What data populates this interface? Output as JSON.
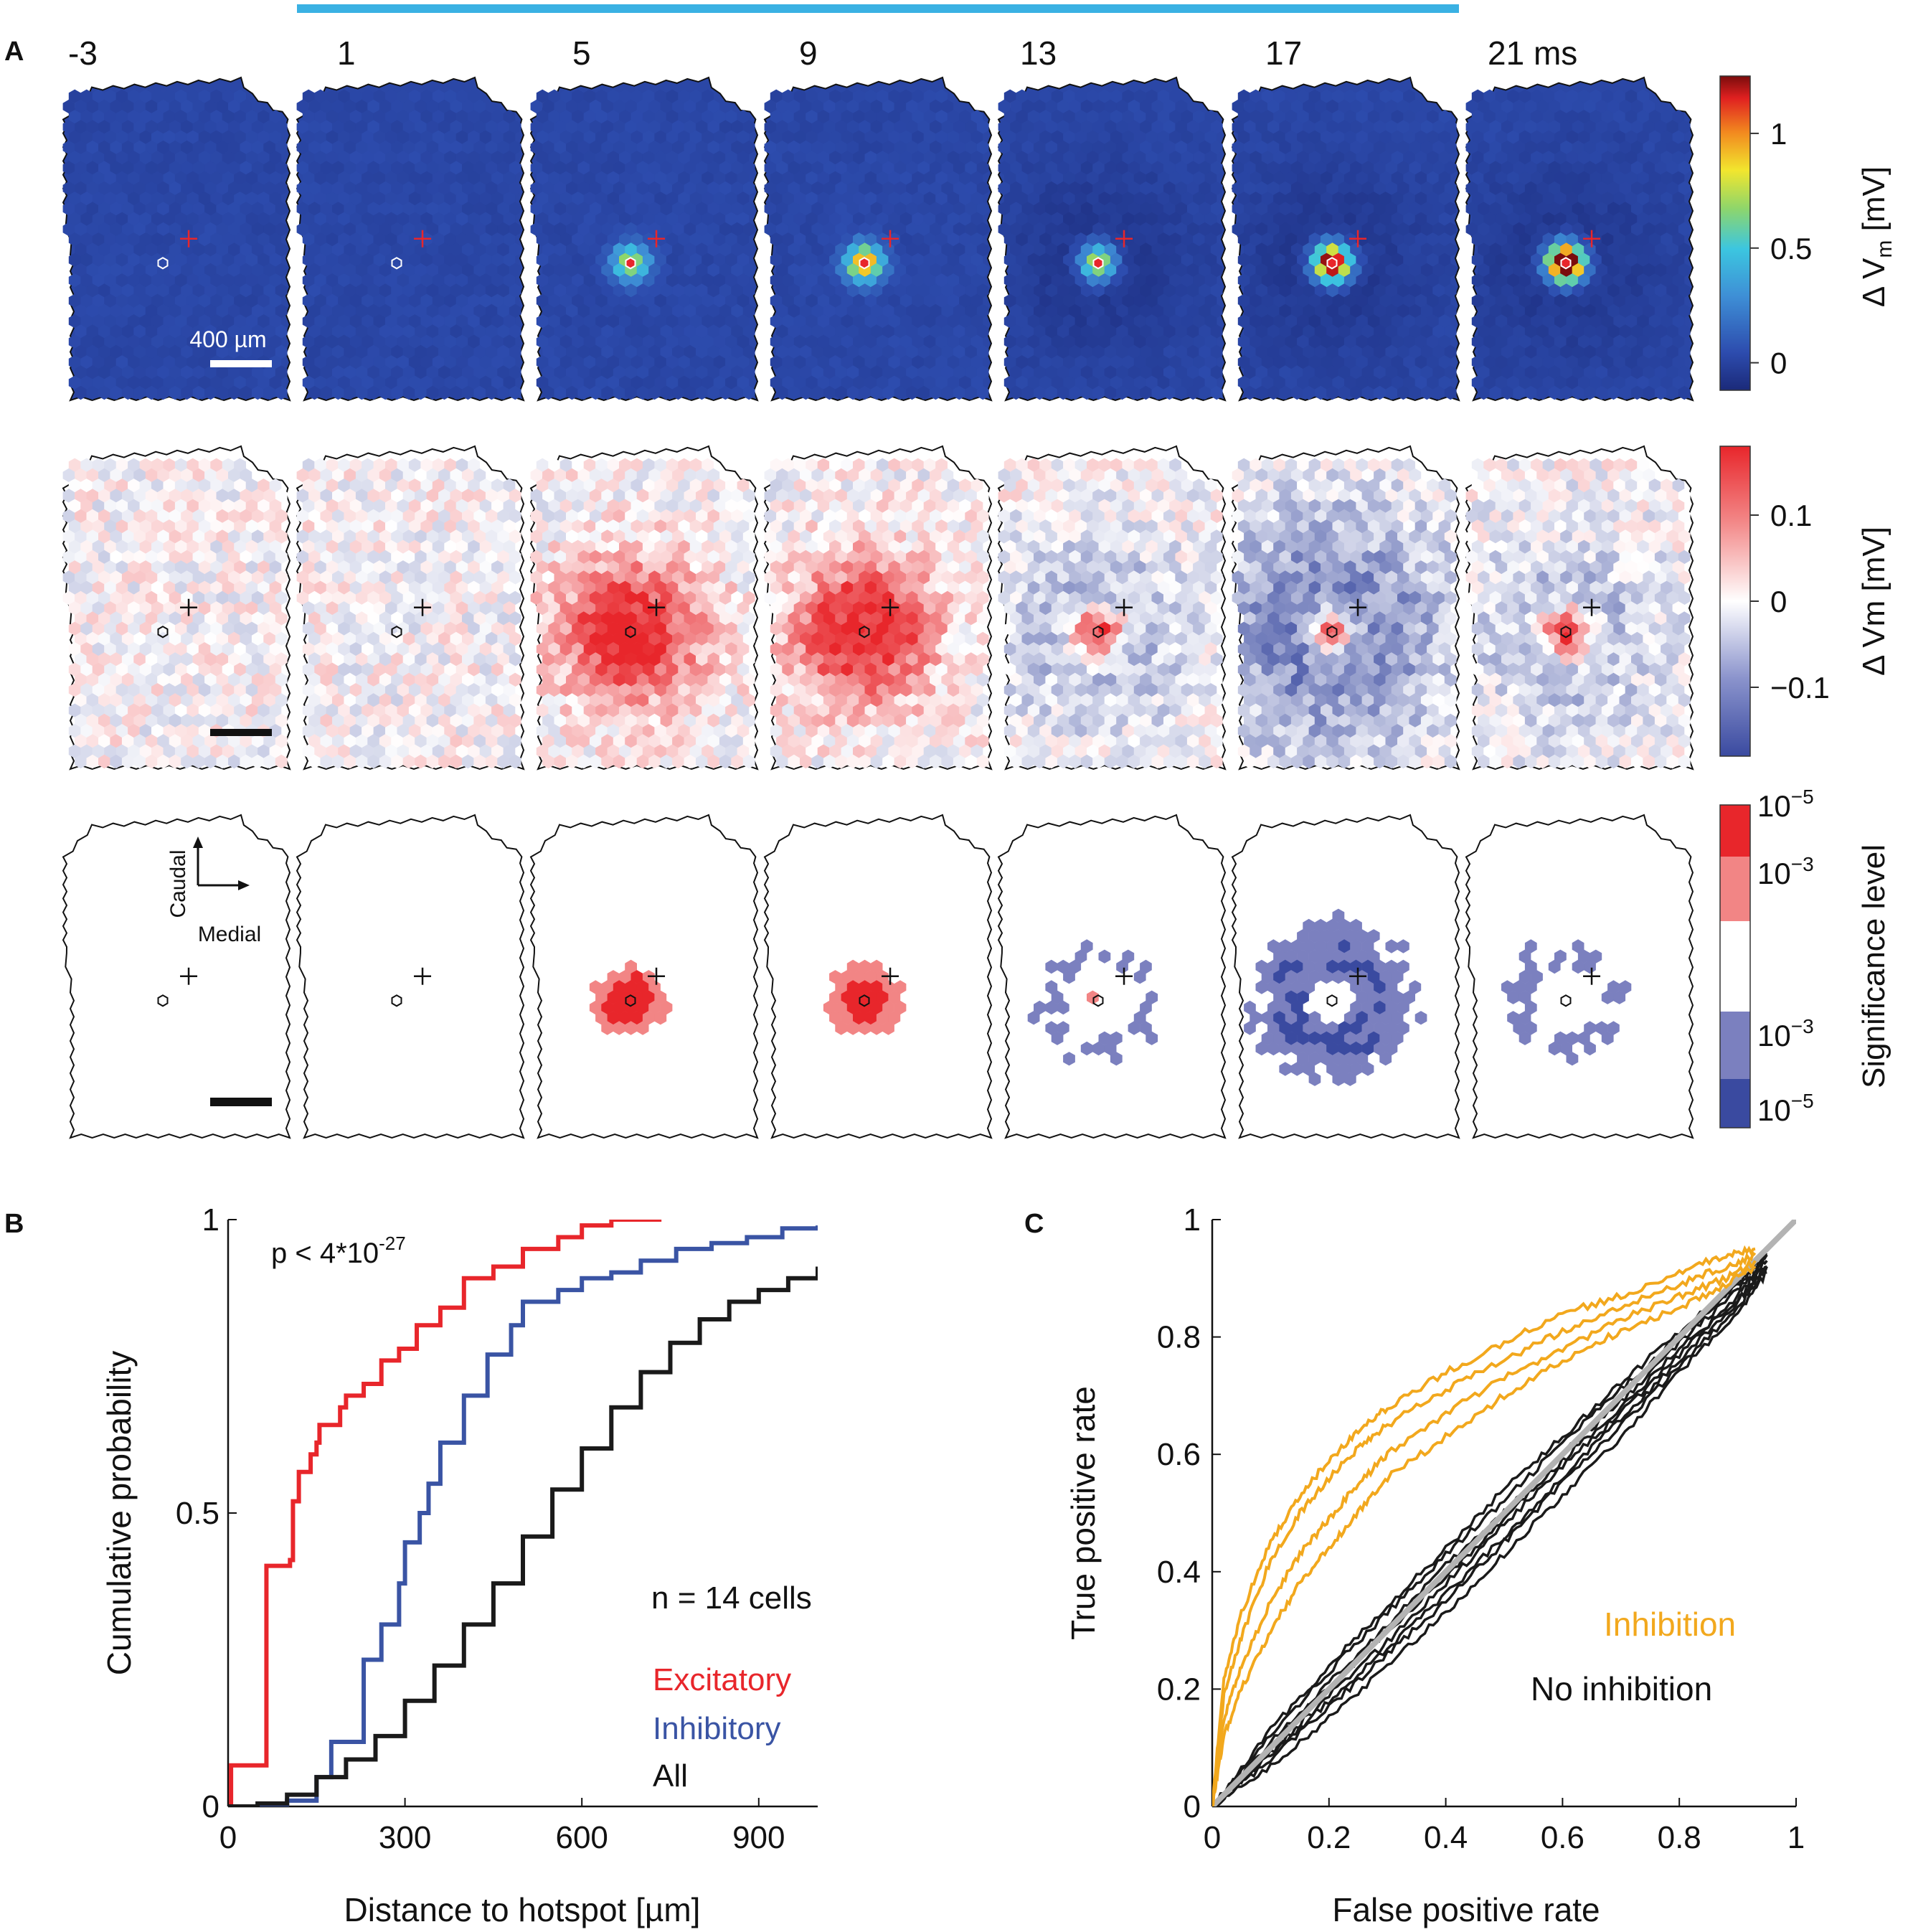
{
  "figure": {
    "panel_labels": {
      "a": "A",
      "b": "B",
      "c": "C"
    },
    "stim_bar_color": "#3ab1e3"
  },
  "panel_a": {
    "time_labels": [
      "-3",
      "1",
      "5",
      "9",
      "13",
      "17",
      "21 ms"
    ],
    "scale_bar_label": "400 µm",
    "orientation": {
      "caudal": "Caudal",
      "medial": "Medial"
    },
    "colorbar_top": {
      "label_main": "Δ V",
      "label_sub": "m",
      "label_unit": " [mV]",
      "ticks": [
        "1",
        "0.5",
        "0"
      ],
      "tick_values": [
        1,
        0.5,
        0
      ],
      "range": [
        -0.12,
        1.25
      ]
    },
    "colorbar_mid": {
      "label": "Δ Vm [mV]",
      "ticks": [
        "0.1",
        "0",
        "−0.1"
      ],
      "tick_values": [
        0.1,
        0,
        -0.1
      ],
      "range": [
        -0.18,
        0.18
      ]
    },
    "colorbar_sig": {
      "label": "Significance level",
      "ticks": [
        {
          "base": "10",
          "exp": "−5"
        },
        {
          "base": "10",
          "exp": "−3"
        },
        {
          "base": "10",
          "exp": "−3"
        },
        {
          "base": "10",
          "exp": "−5"
        }
      ],
      "colors": [
        "#e8262b",
        "#f28585",
        "#ffffff",
        "#7b80bf",
        "#3a4aa0"
      ]
    },
    "top_row_peaks": [
      0.0,
      0.0,
      0.55,
      0.75,
      0.6,
      1.05,
      1.25
    ],
    "mid_row_regime": [
      "noise",
      "noise",
      "excitation",
      "excitation",
      "mixed",
      "inhibition",
      "mixed"
    ]
  },
  "panel_b": {
    "annotation_p": {
      "base": "p < 4*10",
      "exp": "-27"
    },
    "n_label": "n = 14 cells",
    "legend": [
      "Excitatory",
      "Inhibitory",
      "All"
    ],
    "chart_data": {
      "type": "line",
      "title": "",
      "xlabel": "Distance to hotspot [µm]",
      "ylabel": "Cumulative probability",
      "xlim": [
        0,
        1000
      ],
      "ylim": [
        0,
        1
      ],
      "xticks": [
        "0",
        "300",
        "600",
        "900"
      ],
      "xtick_values": [
        0,
        300,
        600,
        900
      ],
      "yticks": [
        "0",
        "0.5",
        "1"
      ],
      "ytick_values": [
        0,
        0.5,
        1
      ],
      "series": [
        {
          "name": "Excitatory",
          "color": "#e8262b",
          "x": [
            0,
            5,
            60,
            65,
            105,
            110,
            120,
            140,
            150,
            155,
            190,
            200,
            230,
            260,
            290,
            320,
            360,
            400,
            450,
            500,
            560,
            600,
            650,
            735
          ],
          "y": [
            0.0,
            0.07,
            0.07,
            0.41,
            0.42,
            0.52,
            0.57,
            0.6,
            0.62,
            0.65,
            0.68,
            0.7,
            0.72,
            0.76,
            0.78,
            0.82,
            0.85,
            0.9,
            0.92,
            0.95,
            0.97,
            0.99,
            1.0,
            1.0
          ]
        },
        {
          "name": "Inhibitory",
          "color": "#3a54a4",
          "x": [
            0,
            100,
            150,
            175,
            230,
            260,
            290,
            300,
            325,
            340,
            360,
            400,
            440,
            480,
            500,
            560,
            600,
            650,
            700,
            760,
            820,
            880,
            940,
            1000
          ],
          "y": [
            0.0,
            0.01,
            0.05,
            0.11,
            0.25,
            0.31,
            0.38,
            0.45,
            0.5,
            0.55,
            0.62,
            0.7,
            0.77,
            0.82,
            0.86,
            0.88,
            0.9,
            0.91,
            0.93,
            0.95,
            0.96,
            0.97,
            0.985,
            0.99
          ]
        },
        {
          "name": "All",
          "color": "#1a1a1a",
          "x": [
            0,
            50,
            100,
            150,
            200,
            250,
            300,
            350,
            400,
            450,
            500,
            550,
            600,
            650,
            700,
            750,
            800,
            850,
            900,
            950,
            1000
          ],
          "y": [
            0.0,
            0.005,
            0.02,
            0.05,
            0.08,
            0.12,
            0.18,
            0.24,
            0.31,
            0.38,
            0.46,
            0.54,
            0.61,
            0.68,
            0.74,
            0.79,
            0.83,
            0.86,
            0.88,
            0.9,
            0.92
          ]
        }
      ]
    }
  },
  "panel_c": {
    "legend": [
      "Inhibition",
      "No inhibition"
    ],
    "chart_data": {
      "type": "line",
      "title": "",
      "xlabel": "False positive rate",
      "ylabel": "True positive rate",
      "xlim": [
        0,
        1
      ],
      "ylim": [
        0,
        1
      ],
      "xticks": [
        "0",
        "0.2",
        "0.4",
        "0.6",
        "0.8",
        "1"
      ],
      "xtick_values": [
        0,
        0.2,
        0.4,
        0.6,
        0.8,
        1
      ],
      "yticks": [
        "0",
        "0.2",
        "0.4",
        "0.6",
        "0.8",
        "1"
      ],
      "ytick_values": [
        0,
        0.2,
        0.4,
        0.6,
        0.8,
        1
      ],
      "diagonal": {
        "name": "chance",
        "color": "#b3b3b3",
        "x": [
          0,
          1
        ],
        "y": [
          0,
          1
        ]
      },
      "series": [
        {
          "name": "Inhibition 1",
          "group": "Inhibition",
          "color": "#f2a81d",
          "x": [
            0,
            0.02,
            0.05,
            0.1,
            0.15,
            0.2,
            0.25,
            0.3,
            0.4,
            0.5,
            0.6,
            0.7,
            0.8,
            0.88,
            0.93
          ],
          "y": [
            0,
            0.22,
            0.33,
            0.45,
            0.53,
            0.59,
            0.64,
            0.68,
            0.74,
            0.79,
            0.84,
            0.87,
            0.91,
            0.94,
            0.95
          ]
        },
        {
          "name": "Inhibition 2",
          "group": "Inhibition",
          "color": "#f2a81d",
          "x": [
            0,
            0.02,
            0.05,
            0.1,
            0.15,
            0.2,
            0.25,
            0.3,
            0.4,
            0.5,
            0.6,
            0.7,
            0.8,
            0.88,
            0.93
          ],
          "y": [
            0,
            0.19,
            0.29,
            0.42,
            0.5,
            0.56,
            0.61,
            0.65,
            0.71,
            0.76,
            0.81,
            0.85,
            0.89,
            0.92,
            0.94
          ]
        },
        {
          "name": "Inhibition 3",
          "group": "Inhibition",
          "color": "#f2a81d",
          "x": [
            0,
            0.02,
            0.05,
            0.1,
            0.15,
            0.2,
            0.25,
            0.3,
            0.4,
            0.5,
            0.6,
            0.7,
            0.8,
            0.88,
            0.93
          ],
          "y": [
            0,
            0.15,
            0.24,
            0.35,
            0.43,
            0.49,
            0.55,
            0.6,
            0.67,
            0.73,
            0.78,
            0.83,
            0.87,
            0.9,
            0.93
          ]
        },
        {
          "name": "Inhibition 4",
          "group": "Inhibition",
          "color": "#f2a81d",
          "x": [
            0,
            0.02,
            0.05,
            0.1,
            0.15,
            0.2,
            0.25,
            0.3,
            0.4,
            0.5,
            0.6,
            0.7,
            0.8,
            0.88,
            0.93
          ],
          "y": [
            0,
            0.12,
            0.2,
            0.3,
            0.38,
            0.44,
            0.5,
            0.56,
            0.63,
            0.7,
            0.76,
            0.81,
            0.85,
            0.89,
            0.92
          ]
        },
        {
          "name": "No inhibition 1",
          "group": "No inhibition",
          "color": "#1a1a1a",
          "x": [
            0,
            0.1,
            0.2,
            0.3,
            0.4,
            0.5,
            0.6,
            0.7,
            0.8,
            0.9,
            0.95
          ],
          "y": [
            0,
            0.12,
            0.23,
            0.33,
            0.43,
            0.52,
            0.62,
            0.71,
            0.8,
            0.89,
            0.94
          ]
        },
        {
          "name": "No inhibition 2",
          "group": "No inhibition",
          "color": "#1a1a1a",
          "x": [
            0,
            0.1,
            0.2,
            0.3,
            0.4,
            0.5,
            0.6,
            0.7,
            0.8,
            0.9,
            0.95
          ],
          "y": [
            0,
            0.1,
            0.21,
            0.31,
            0.41,
            0.5,
            0.6,
            0.69,
            0.79,
            0.88,
            0.93
          ]
        },
        {
          "name": "No inhibition 3",
          "group": "No inhibition",
          "color": "#1a1a1a",
          "x": [
            0,
            0.1,
            0.2,
            0.3,
            0.4,
            0.5,
            0.6,
            0.7,
            0.8,
            0.9,
            0.95
          ],
          "y": [
            0,
            0.09,
            0.19,
            0.28,
            0.38,
            0.48,
            0.58,
            0.67,
            0.77,
            0.87,
            0.93
          ]
        },
        {
          "name": "No inhibition 4",
          "group": "No inhibition",
          "color": "#1a1a1a",
          "x": [
            0,
            0.1,
            0.2,
            0.3,
            0.4,
            0.5,
            0.6,
            0.7,
            0.8,
            0.9,
            0.95
          ],
          "y": [
            0,
            0.08,
            0.17,
            0.26,
            0.35,
            0.45,
            0.55,
            0.65,
            0.75,
            0.85,
            0.92
          ]
        },
        {
          "name": "No inhibition 5",
          "group": "No inhibition",
          "color": "#1a1a1a",
          "x": [
            0,
            0.1,
            0.2,
            0.3,
            0.4,
            0.5,
            0.6,
            0.7,
            0.8,
            0.9,
            0.95
          ],
          "y": [
            0,
            0.11,
            0.2,
            0.3,
            0.39,
            0.49,
            0.59,
            0.68,
            0.78,
            0.86,
            0.92
          ]
        },
        {
          "name": "No inhibition 6",
          "group": "No inhibition",
          "color": "#1a1a1a",
          "x": [
            0,
            0.1,
            0.2,
            0.3,
            0.4,
            0.5,
            0.6,
            0.7,
            0.8,
            0.9,
            0.95
          ],
          "y": [
            0,
            0.07,
            0.15,
            0.24,
            0.33,
            0.43,
            0.53,
            0.63,
            0.74,
            0.84,
            0.91
          ]
        },
        {
          "name": "No inhibition 7",
          "group": "No inhibition",
          "color": "#1a1a1a",
          "x": [
            0,
            0.1,
            0.2,
            0.3,
            0.4,
            0.5,
            0.6,
            0.7,
            0.8,
            0.9,
            0.95
          ],
          "y": [
            0,
            0.13,
            0.24,
            0.34,
            0.44,
            0.54,
            0.63,
            0.72,
            0.81,
            0.89,
            0.94
          ]
        },
        {
          "name": "No inhibition 8",
          "group": "No inhibition",
          "color": "#1a1a1a",
          "x": [
            0,
            0.1,
            0.2,
            0.3,
            0.4,
            0.5,
            0.6,
            0.7,
            0.8,
            0.9,
            0.95
          ],
          "y": [
            0,
            0.09,
            0.18,
            0.27,
            0.36,
            0.46,
            0.56,
            0.66,
            0.76,
            0.86,
            0.92
          ]
        }
      ]
    }
  }
}
